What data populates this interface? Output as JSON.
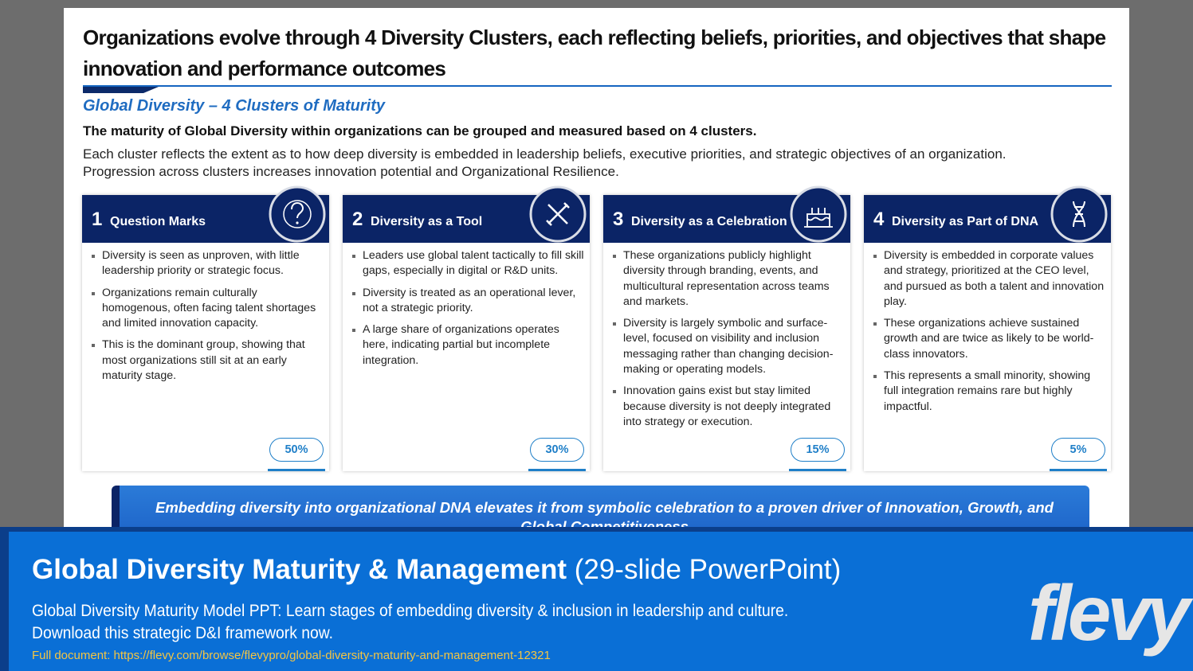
{
  "slide": {
    "title": "Organizations evolve through 4 Diversity Clusters, each reflecting beliefs, priorities, and objectives that shape innovation and performance outcomes",
    "subtitle": "Global Diversity – 4 Clusters of Maturity",
    "lead": "The maturity of Global Diversity within organizations can be grouped and measured based on 4 clusters.",
    "body": [
      "Each cluster reflects the extent as to how deep diversity is embedded in leadership beliefs, executive priorities, and strategic objectives of an organization.",
      "Progression across clusters increases innovation potential and Organizational Resilience."
    ],
    "clusters": [
      {
        "number": "1",
        "name": "Question Marks",
        "bullets": [
          "Diversity is seen as unproven, with little leadership priority or strategic focus.",
          "Organizations remain culturally homogenous, often facing talent shortages and limited innovation capacity.",
          "This is the dominant group, showing that most organizations still sit at an early maturity stage."
        ],
        "share": "50%"
      },
      {
        "number": "2",
        "name": "Diversity as a Tool",
        "bullets": [
          "Leaders use global talent tactically to fill skill gaps, especially in digital or R&D units.",
          "Diversity is treated as an operational lever, not a strategic priority.",
          "A large share of organizations operates here, indicating partial but incomplete integration."
        ],
        "share": "30%"
      },
      {
        "number": "3",
        "name": "Diversity as a Celebration",
        "bullets": [
          "These organizations publicly highlight diversity through branding, events, and multicultural representation across teams and markets.",
          "Diversity is largely symbolic and surface-level, focused on visibility and inclusion messaging rather than changing decision-making or operating models.",
          "Innovation gains exist but stay limited because diversity is not deeply integrated into strategy or execution."
        ],
        "share": "15%"
      },
      {
        "number": "4",
        "name": "Diversity as Part of DNA",
        "bullets": [
          "Diversity is embedded in corporate values and strategy, prioritized at the CEO level, and pursued as both a talent and innovation play.",
          "These organizations achieve sustained growth and are twice as likely to be world-class innovators.",
          "This represents a small minority, showing full integration remains rare but highly impactful."
        ],
        "share": "5%"
      }
    ],
    "callout": "Embedding diversity into organizational DNA elevates it from symbolic celebration to a proven driver of Innovation, Growth, and Global Competitiveness"
  },
  "banner": {
    "title": "Global Diversity Maturity & Management",
    "title_note": "(29-slide PowerPoint)",
    "description": [
      "Global Diversity Maturity Model PPT: Learn stages of embedding diversity & inclusion in leadership and culture.",
      "Download this strategic D&I framework now."
    ],
    "link": "Full document: https://flevy.com/browse/flevypro/global-diversity-maturity-and-management-12321",
    "logo": "flevy"
  }
}
